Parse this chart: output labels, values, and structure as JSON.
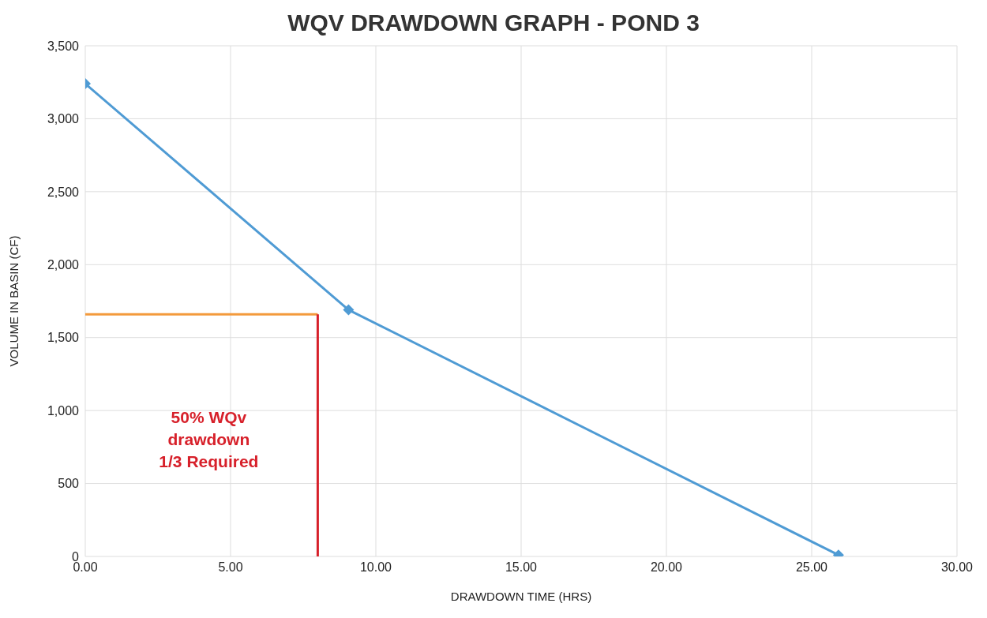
{
  "chart_data": {
    "type": "line",
    "title": "WQV DRAWDOWN GRAPH - POND 3",
    "xlabel": "DRAWDOWN TIME (HRS)",
    "ylabel": "VOLUME IN BASIN (CF)",
    "x": [
      0,
      9.06,
      25.92
    ],
    "series": [
      {
        "color": "#4f9bd4",
        "values": [
          3240,
          1690,
          10
        ],
        "marker": "diamond"
      }
    ],
    "ref_lines": [
      {
        "axis": "y",
        "value": 1660,
        "color": "#f39a3c"
      },
      {
        "axis": "x",
        "value": 8,
        "color": "#d7202a"
      }
    ],
    "xlim": [
      0,
      30
    ],
    "xticks": [
      {
        "value": 0,
        "label": "0.00"
      },
      {
        "value": 5,
        "label": "5.00"
      },
      {
        "value": 10,
        "label": "10.00"
      },
      {
        "value": 15,
        "label": "15.00"
      },
      {
        "value": 20,
        "label": "20.00"
      },
      {
        "value": 25,
        "label": "25.00"
      },
      {
        "value": 30,
        "label": "30.00"
      }
    ],
    "ylim": [
      0,
      3500
    ],
    "yticks": [
      0,
      {
        "value": 500,
        "label": "500"
      },
      {
        "value": 1000,
        "label": "1,000"
      },
      {
        "value": 1500,
        "label": "1,500"
      },
      {
        "value": 2000,
        "label": "2,000"
      },
      {
        "value": 2500,
        "label": "2,500"
      },
      {
        "value": 3000,
        "label": "3,000"
      },
      {
        "value": 3500,
        "label": "3,500"
      }
    ],
    "grid": true,
    "line_style": "solid",
    "annotations": [
      "50% WQv\ndrawdown\n1/3 Required"
    ]
  }
}
